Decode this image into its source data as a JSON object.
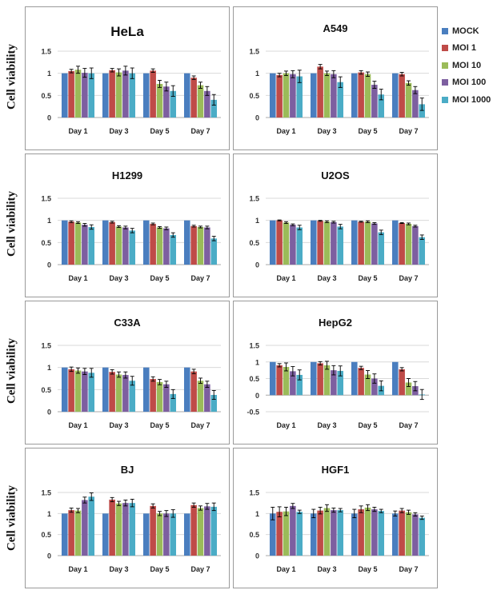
{
  "figure": {
    "ylabel": "Cell viability",
    "legend_placement": "top-right"
  },
  "series_colors": [
    "#4a7ebf",
    "#bf4b48",
    "#9bbb59",
    "#7d5fa0",
    "#4bacc6"
  ],
  "chart_data": [
    {
      "type": "bar",
      "title": "HeLa",
      "title_size": "large",
      "categories": [
        "Day 1",
        "Day 3",
        "Day 5",
        "Day 7"
      ],
      "ylim": [
        0,
        1.5
      ],
      "yticks": [
        0,
        0.5,
        1,
        1.5
      ],
      "grid": true,
      "series": [
        {
          "name": "MOCK",
          "values": [
            1,
            1,
            1,
            1
          ],
          "errors": [
            0,
            0,
            0,
            0
          ]
        },
        {
          "name": "MOI 1",
          "values": [
            1.05,
            1.07,
            1.06,
            0.9
          ],
          "errors": [
            0.04,
            0.04,
            0.04,
            0.04
          ]
        },
        {
          "name": "MOI 10",
          "values": [
            1.08,
            1.02,
            0.76,
            0.73
          ],
          "errors": [
            0.08,
            0.08,
            0.08,
            0.07
          ]
        },
        {
          "name": "MOI 100",
          "values": [
            1.01,
            1.06,
            0.7,
            0.6
          ],
          "errors": [
            0.1,
            0.1,
            0.1,
            0.1
          ]
        },
        {
          "name": "MOI 1000",
          "values": [
            1.0,
            1.0,
            0.6,
            0.4
          ],
          "errors": [
            0.12,
            0.12,
            0.12,
            0.12
          ]
        }
      ]
    },
    {
      "type": "bar",
      "title": "A549",
      "categories": [
        "Day 1",
        "Day 3",
        "Day 5",
        "Day 7"
      ],
      "ylim": [
        0,
        1.5
      ],
      "yticks": [
        0,
        0.5,
        1,
        1.5
      ],
      "grid": true,
      "series": [
        {
          "name": "MOCK",
          "values": [
            1,
            1,
            1,
            1
          ],
          "errors": [
            0,
            0,
            0,
            0
          ]
        },
        {
          "name": "MOI 1",
          "values": [
            0.96,
            1.15,
            1.02,
            0.98
          ],
          "errors": [
            0.04,
            0.05,
            0.04,
            0.04
          ]
        },
        {
          "name": "MOI 10",
          "values": [
            1.0,
            1.0,
            0.98,
            0.78
          ],
          "errors": [
            0.05,
            0.05,
            0.05,
            0.05
          ]
        },
        {
          "name": "MOI 100",
          "values": [
            0.98,
            0.98,
            0.74,
            0.62
          ],
          "errors": [
            0.08,
            0.08,
            0.08,
            0.08
          ]
        },
        {
          "name": "MOI 1000",
          "values": [
            0.93,
            0.8,
            0.52,
            0.3
          ],
          "errors": [
            0.14,
            0.12,
            0.12,
            0.14
          ]
        }
      ]
    },
    {
      "type": "bar",
      "title": "H1299",
      "categories": [
        "Day 1",
        "Day 3",
        "Day 5",
        "Day 7"
      ],
      "ylim": [
        0,
        1.5
      ],
      "yticks": [
        0,
        0.5,
        1,
        1.5
      ],
      "grid": true,
      "series": [
        {
          "name": "MOCK",
          "values": [
            1,
            1,
            1,
            1
          ],
          "errors": [
            0,
            0,
            0,
            0
          ]
        },
        {
          "name": "MOI 1",
          "values": [
            0.97,
            0.96,
            0.92,
            0.87
          ],
          "errors": [
            0.02,
            0.02,
            0.02,
            0.02
          ]
        },
        {
          "name": "MOI 10",
          "values": [
            0.95,
            0.86,
            0.84,
            0.85
          ],
          "errors": [
            0.02,
            0.02,
            0.02,
            0.02
          ]
        },
        {
          "name": "MOI 100",
          "values": [
            0.9,
            0.84,
            0.82,
            0.84
          ],
          "errors": [
            0.03,
            0.03,
            0.03,
            0.03
          ]
        },
        {
          "name": "MOI 1000",
          "values": [
            0.85,
            0.77,
            0.67,
            0.59
          ],
          "errors": [
            0.05,
            0.05,
            0.05,
            0.05
          ]
        }
      ]
    },
    {
      "type": "bar",
      "title": "U2OS",
      "categories": [
        "Day 1",
        "Day 3",
        "Day 5",
        "Day 7"
      ],
      "ylim": [
        0,
        1.5
      ],
      "yticks": [
        0,
        0.5,
        1,
        1.5
      ],
      "grid": true,
      "series": [
        {
          "name": "MOCK",
          "values": [
            1,
            1,
            1,
            1
          ],
          "errors": [
            0,
            0,
            0,
            0
          ]
        },
        {
          "name": "MOI 1",
          "values": [
            1.0,
            0.99,
            0.97,
            0.94
          ],
          "errors": [
            0.01,
            0.01,
            0.01,
            0.01
          ]
        },
        {
          "name": "MOI 10",
          "values": [
            0.95,
            0.97,
            0.97,
            0.92
          ],
          "errors": [
            0.02,
            0.02,
            0.02,
            0.02
          ]
        },
        {
          "name": "MOI 100",
          "values": [
            0.9,
            0.96,
            0.93,
            0.87
          ],
          "errors": [
            0.02,
            0.02,
            0.02,
            0.02
          ]
        },
        {
          "name": "MOI 1000",
          "values": [
            0.84,
            0.86,
            0.73,
            0.62
          ],
          "errors": [
            0.05,
            0.05,
            0.05,
            0.05
          ]
        }
      ]
    },
    {
      "type": "bar",
      "title": "C33A",
      "categories": [
        "Day 1",
        "Day 3",
        "Day 5",
        "Day 7"
      ],
      "ylim": [
        0,
        1.5
      ],
      "yticks": [
        0,
        0.5,
        1,
        1.5
      ],
      "grid": true,
      "series": [
        {
          "name": "MOCK",
          "values": [
            1,
            1,
            1,
            1
          ],
          "errors": [
            0,
            0,
            0,
            0
          ]
        },
        {
          "name": "MOI 1",
          "values": [
            0.96,
            0.9,
            0.74,
            0.91
          ],
          "errors": [
            0.05,
            0.05,
            0.05,
            0.05
          ]
        },
        {
          "name": "MOI 10",
          "values": [
            0.93,
            0.84,
            0.67,
            0.7
          ],
          "errors": [
            0.06,
            0.06,
            0.06,
            0.06
          ]
        },
        {
          "name": "MOI 100",
          "values": [
            0.91,
            0.83,
            0.62,
            0.62
          ],
          "errors": [
            0.07,
            0.07,
            0.07,
            0.07
          ]
        },
        {
          "name": "MOI 1000",
          "values": [
            0.88,
            0.7,
            0.4,
            0.38
          ],
          "errors": [
            0.1,
            0.1,
            0.1,
            0.1
          ]
        }
      ]
    },
    {
      "type": "bar",
      "title": "HepG2",
      "categories": [
        "Day 1",
        "Day 3",
        "Day 5",
        "Day 7"
      ],
      "ylim": [
        -0.5,
        1.5
      ],
      "yticks": [
        -0.5,
        0,
        0.5,
        1,
        1.5
      ],
      "grid": true,
      "series": [
        {
          "name": "MOCK",
          "values": [
            1,
            1,
            1,
            1
          ],
          "errors": [
            0,
            0,
            0,
            0
          ]
        },
        {
          "name": "MOI 1",
          "values": [
            0.9,
            0.96,
            0.82,
            0.78
          ],
          "errors": [
            0.05,
            0.05,
            0.05,
            0.05
          ]
        },
        {
          "name": "MOI 10",
          "values": [
            0.85,
            0.9,
            0.62,
            0.38
          ],
          "errors": [
            0.12,
            0.12,
            0.12,
            0.12
          ]
        },
        {
          "name": "MOI 100",
          "values": [
            0.72,
            0.75,
            0.5,
            0.27
          ],
          "errors": [
            0.14,
            0.14,
            0.14,
            0.14
          ]
        },
        {
          "name": "MOI 1000",
          "values": [
            0.61,
            0.73,
            0.28,
            0.02
          ],
          "errors": [
            0.15,
            0.15,
            0.15,
            0.15
          ]
        }
      ]
    },
    {
      "type": "bar",
      "title": "BJ",
      "categories": [
        "Day 1",
        "Day 3",
        "Day 5",
        "Day 7"
      ],
      "ylim": [
        0,
        1.5
      ],
      "yticks": [
        0,
        0.5,
        1,
        1.5
      ],
      "grid": true,
      "series": [
        {
          "name": "MOCK",
          "values": [
            1,
            1,
            1,
            1
          ],
          "errors": [
            0,
            0,
            0,
            0
          ]
        },
        {
          "name": "MOI 1",
          "values": [
            1.08,
            1.33,
            1.18,
            1.2
          ],
          "errors": [
            0.05,
            0.05,
            0.05,
            0.05
          ]
        },
        {
          "name": "MOI 10",
          "values": [
            1.07,
            1.24,
            1.0,
            1.13
          ],
          "errors": [
            0.05,
            0.05,
            0.05,
            0.05
          ]
        },
        {
          "name": "MOI 100",
          "values": [
            1.32,
            1.25,
            1.0,
            1.17
          ],
          "errors": [
            0.07,
            0.07,
            0.07,
            0.07
          ]
        },
        {
          "name": "MOI 1000",
          "values": [
            1.4,
            1.25,
            1.0,
            1.16
          ],
          "errors": [
            0.09,
            0.09,
            0.09,
            0.09
          ]
        }
      ]
    },
    {
      "type": "bar",
      "title": "HGF1",
      "categories": [
        "Day 1",
        "Day 3",
        "Day 5",
        "Day 7"
      ],
      "ylim": [
        0,
        1.5
      ],
      "yticks": [
        0,
        0.5,
        1,
        1.5
      ],
      "grid": true,
      "series": [
        {
          "name": "MOCK",
          "values": [
            1,
            1,
            1,
            1
          ],
          "errors": [
            0.15,
            0.1,
            0.1,
            0.06
          ]
        },
        {
          "name": "MOI 1",
          "values": [
            1.04,
            1.07,
            1.1,
            1.07
          ],
          "errors": [
            0.12,
            0.08,
            0.08,
            0.05
          ]
        },
        {
          "name": "MOI 10",
          "values": [
            1.05,
            1.13,
            1.14,
            1.03
          ],
          "errors": [
            0.1,
            0.08,
            0.07,
            0.05
          ]
        },
        {
          "name": "MOI 100",
          "values": [
            1.18,
            1.08,
            1.1,
            0.98
          ],
          "errors": [
            0.06,
            0.05,
            0.05,
            0.04
          ]
        },
        {
          "name": "MOI 1000",
          "values": [
            1.04,
            1.08,
            1.06,
            0.9
          ],
          "errors": [
            0.04,
            0.04,
            0.04,
            0.04
          ]
        }
      ]
    }
  ]
}
